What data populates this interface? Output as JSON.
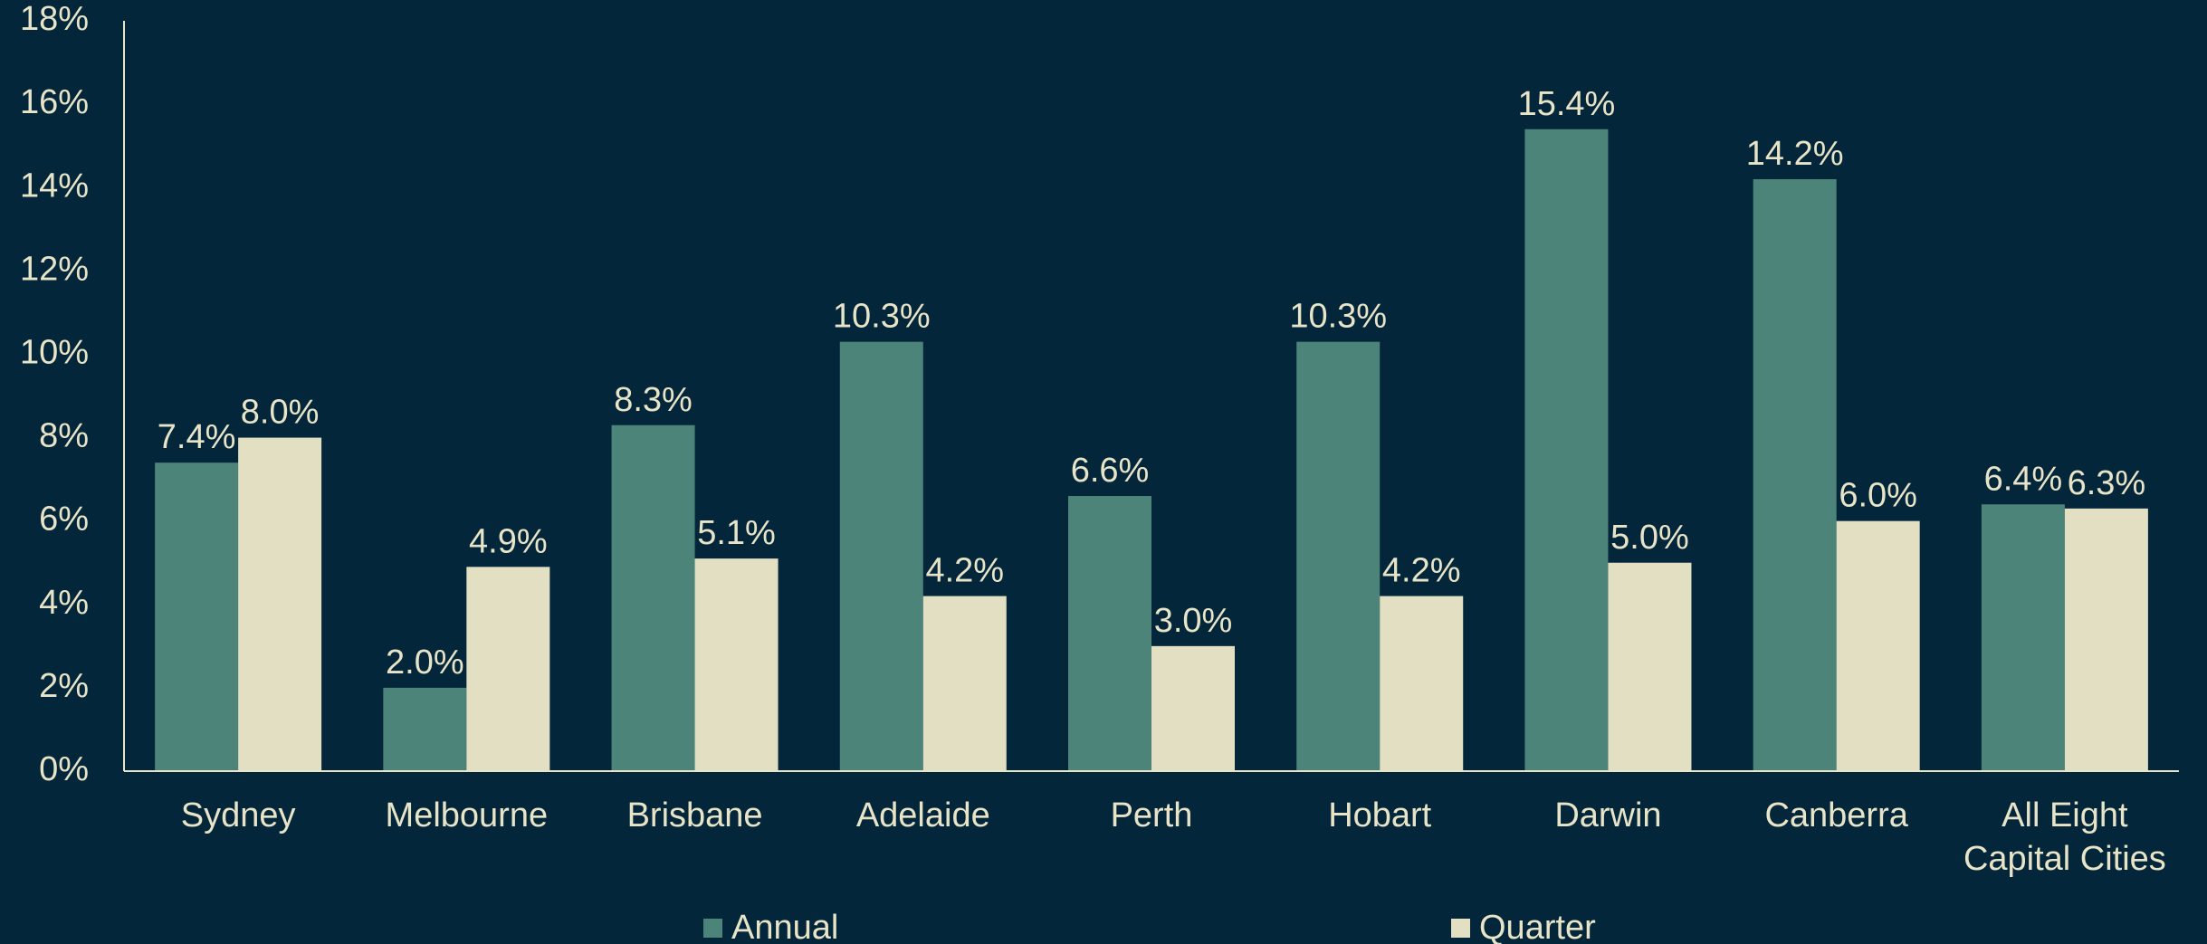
{
  "chart_data": {
    "type": "bar",
    "categories": [
      "Sydney",
      "Melbourne",
      "Brisbane",
      "Adelaide",
      "Perth",
      "Hobart",
      "Darwin",
      "Canberra",
      "All Eight\nCapital Cities"
    ],
    "series": [
      {
        "name": "Annual",
        "color": "#4d8479",
        "values": [
          7.4,
          2.0,
          8.3,
          10.3,
          6.6,
          10.3,
          15.4,
          14.2,
          6.4
        ],
        "value_labels": [
          "7.4%",
          "2.0%",
          "8.3%",
          "10.3%",
          "6.6%",
          "10.3%",
          "15.4%",
          "14.2%",
          "6.4%"
        ]
      },
      {
        "name": "Quarter",
        "color": "#e2dfc2",
        "values": [
          8.0,
          4.9,
          5.1,
          4.2,
          3.0,
          4.2,
          5.0,
          6.0,
          6.3
        ],
        "value_labels": [
          "8.0%",
          "4.9%",
          "5.1%",
          "4.2%",
          "3.0%",
          "4.2%",
          "5.0%",
          "6.0%",
          "6.3%"
        ]
      }
    ],
    "ylim": [
      0,
      18
    ],
    "yticks": [
      {
        "value": 0,
        "label": "0%"
      },
      {
        "value": 2,
        "label": "2%"
      },
      {
        "value": 4,
        "label": "4%"
      },
      {
        "value": 6,
        "label": "6%"
      },
      {
        "value": 8,
        "label": "8%"
      },
      {
        "value": 10,
        "label": "10%"
      },
      {
        "value": 12,
        "label": "12%"
      },
      {
        "value": 14,
        "label": "14%"
      },
      {
        "value": 16,
        "label": "16%"
      },
      {
        "value": 18,
        "label": "18%"
      }
    ],
    "legend": "bottom"
  }
}
